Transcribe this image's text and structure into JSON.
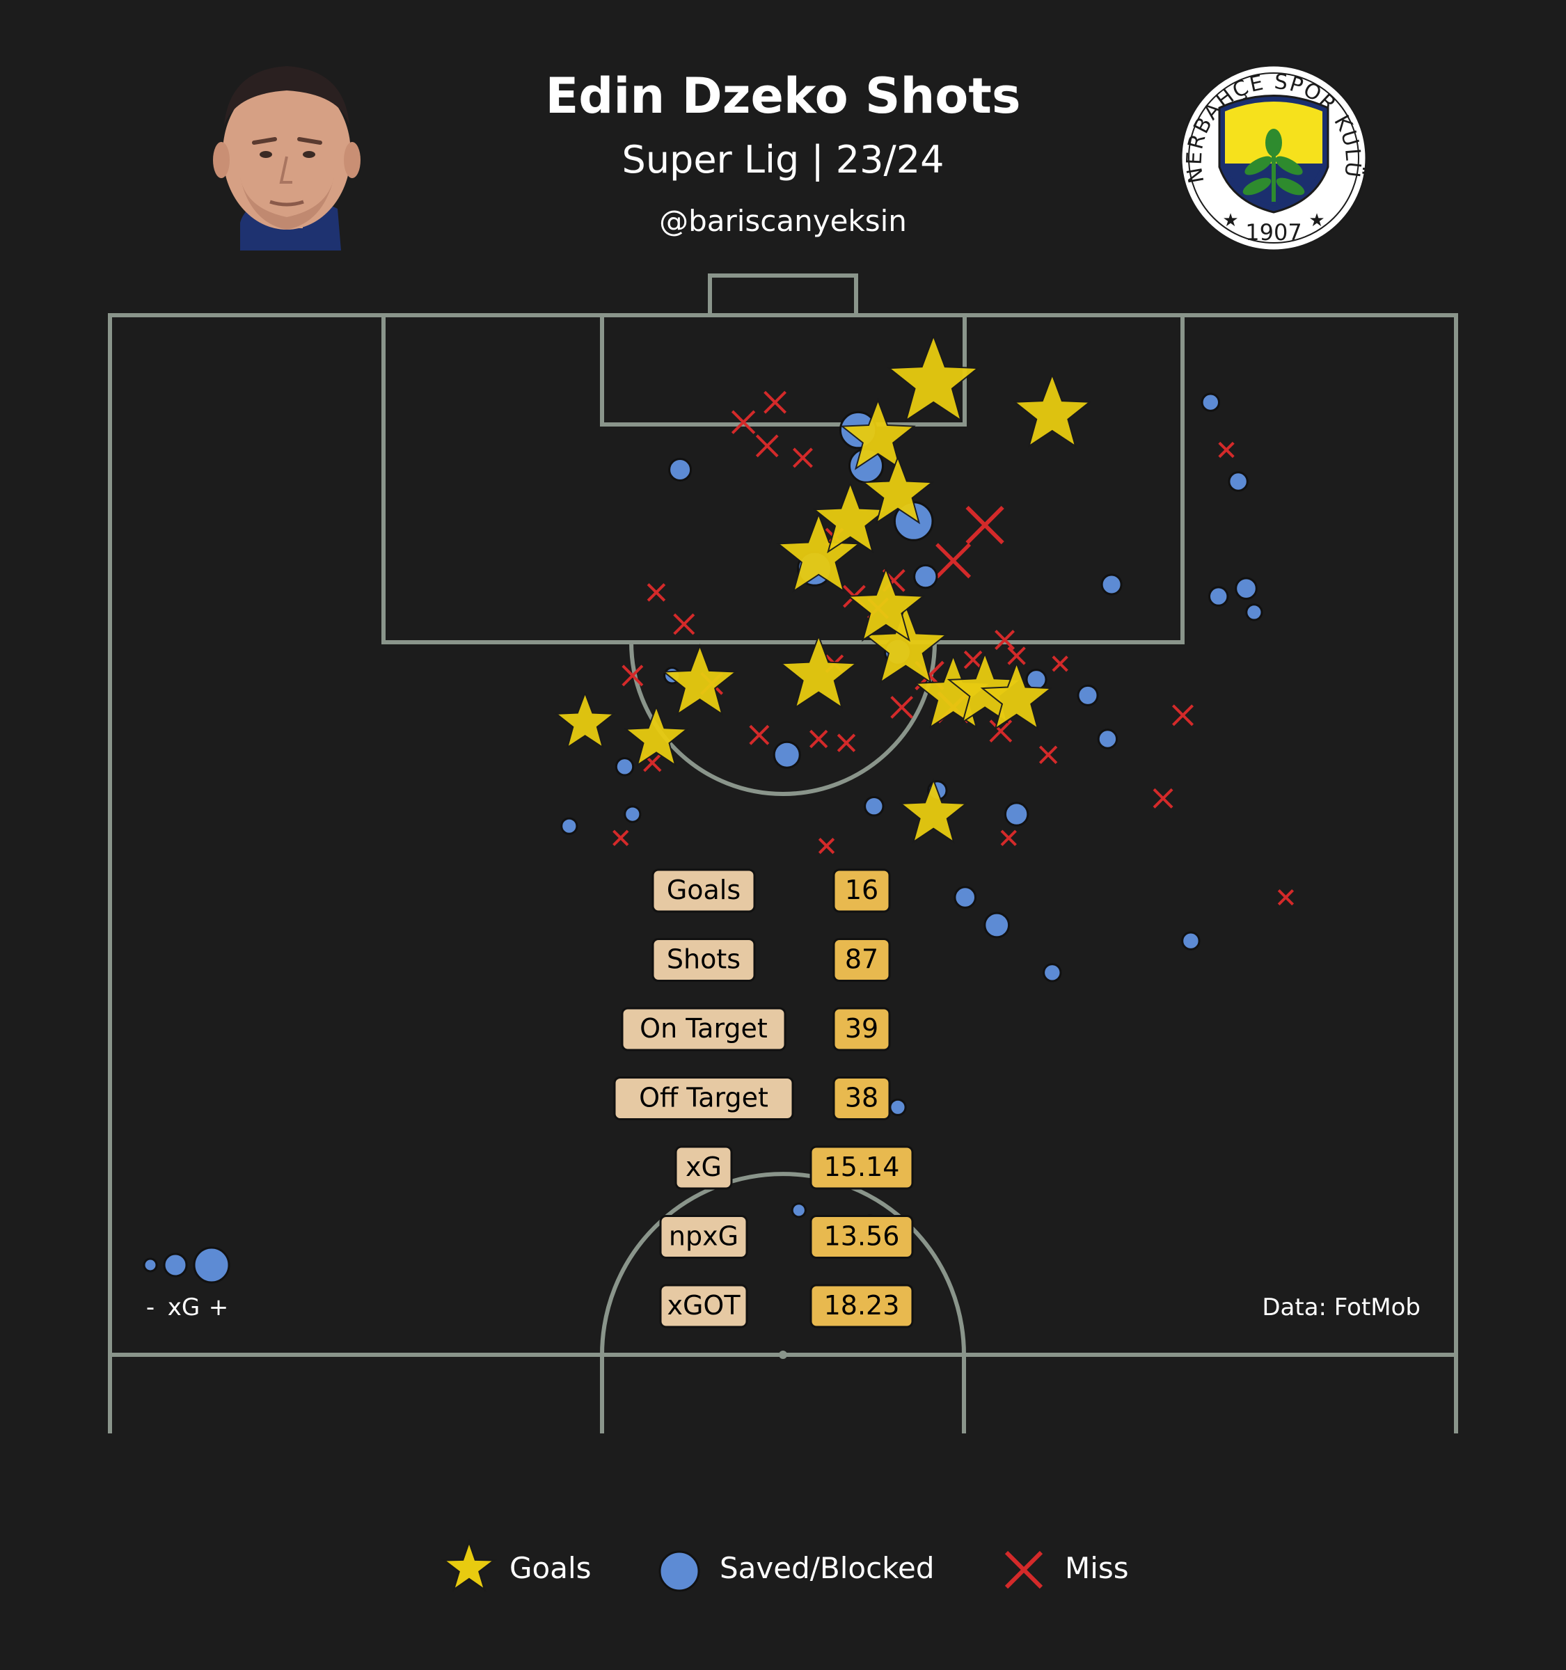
{
  "header": {
    "title": "Edin Dzeko Shots",
    "subtitle": "Super Lig | 23/24",
    "handle": "@bariscanyeksin",
    "source": "Data: FotMob"
  },
  "club_badge": {
    "text_top": "FENERBAHÇE SPOR KULÜBÜ",
    "year": "1907",
    "colors": {
      "navy": "#1b2f6e",
      "yellow": "#f6e11c",
      "leaf": "#2e8b2e",
      "red": "#c8102e"
    }
  },
  "colors": {
    "background": "#1c1c1c",
    "pitch_lines": "#8a958b",
    "goal": "#e8cb10",
    "saved": "#5d8bd4",
    "miss": "#d42a2a",
    "label_box": "#e6c9a3",
    "value_box": "#e8b94f"
  },
  "stats": [
    {
      "label": "Goals",
      "value": "16"
    },
    {
      "label": "Shots",
      "value": "87"
    },
    {
      "label": "On Target",
      "value": "39"
    },
    {
      "label": "Off Target",
      "value": "38"
    },
    {
      "label": "xG",
      "value": "15.14"
    },
    {
      "label": "npxG",
      "value": "13.56"
    },
    {
      "label": "xGOT",
      "value": "18.23"
    }
  ],
  "size_legend": {
    "minus": "-",
    "label": "xG",
    "plus": "+"
  },
  "legend": [
    {
      "key": "goal",
      "label": "Goals"
    },
    {
      "key": "saved",
      "label": "Saved/Blocked"
    },
    {
      "key": "miss",
      "label": "Miss"
    }
  ],
  "chart_data": {
    "type": "scatter",
    "title": "Edin Dzeko Shots",
    "description": "Shot map on half pitch; x = meters from left touchline, y = meters from goal line, xg = expected goals (marker size)",
    "shots": [
      {
        "x": 41.6,
        "y": 3.4,
        "xg": 0.75,
        "outcome": "goal"
      },
      {
        "x": 47.6,
        "y": 5.0,
        "xg": 0.5,
        "outcome": "goal"
      },
      {
        "x": 38.8,
        "y": 6.2,
        "xg": 0.45,
        "outcome": "goal"
      },
      {
        "x": 37.4,
        "y": 10.4,
        "xg": 0.45,
        "outcome": "goal"
      },
      {
        "x": 35.8,
        "y": 12.2,
        "xg": 0.6,
        "outcome": "goal"
      },
      {
        "x": 39.2,
        "y": 14.8,
        "xg": 0.5,
        "outcome": "goal"
      },
      {
        "x": 40.2,
        "y": 16.8,
        "xg": 0.6,
        "outcome": "goal"
      },
      {
        "x": 35.8,
        "y": 18.2,
        "xg": 0.5,
        "outcome": "goal"
      },
      {
        "x": 29.8,
        "y": 18.6,
        "xg": 0.45,
        "outcome": "goal"
      },
      {
        "x": 44.2,
        "y": 19.0,
        "xg": 0.45,
        "outcome": "goal"
      },
      {
        "x": 42.6,
        "y": 19.2,
        "xg": 0.5,
        "outcome": "goal"
      },
      {
        "x": 45.8,
        "y": 19.4,
        "xg": 0.4,
        "outcome": "goal"
      },
      {
        "x": 24.0,
        "y": 20.6,
        "xg": 0.25,
        "outcome": "goal"
      },
      {
        "x": 27.6,
        "y": 21.4,
        "xg": 0.3,
        "outcome": "goal"
      },
      {
        "x": 41.6,
        "y": 25.2,
        "xg": 0.35,
        "outcome": "goal"
      },
      {
        "x": 39.8,
        "y": 9.0,
        "xg": 0.4,
        "outcome": "goal"
      },
      {
        "x": 37.8,
        "y": 5.8,
        "xg": 0.3,
        "outcome": "saved"
      },
      {
        "x": 38.2,
        "y": 7.6,
        "xg": 0.25,
        "outcome": "saved"
      },
      {
        "x": 40.6,
        "y": 10.4,
        "xg": 0.35,
        "outcome": "saved"
      },
      {
        "x": 35.6,
        "y": 12.8,
        "xg": 0.25,
        "outcome": "saved"
      },
      {
        "x": 41.2,
        "y": 13.2,
        "xg": 0.08,
        "outcome": "saved"
      },
      {
        "x": 39.8,
        "y": 17.0,
        "xg": 0.12,
        "outcome": "saved"
      },
      {
        "x": 28.8,
        "y": 7.8,
        "xg": 0.07,
        "outcome": "saved"
      },
      {
        "x": 55.6,
        "y": 4.4,
        "xg": 0.03,
        "outcome": "saved"
      },
      {
        "x": 57.0,
        "y": 8.4,
        "xg": 0.04,
        "outcome": "saved"
      },
      {
        "x": 50.6,
        "y": 13.6,
        "xg": 0.05,
        "outcome": "saved"
      },
      {
        "x": 56.0,
        "y": 14.2,
        "xg": 0.04,
        "outcome": "saved"
      },
      {
        "x": 57.4,
        "y": 13.8,
        "xg": 0.06,
        "outcome": "saved"
      },
      {
        "x": 57.8,
        "y": 15.0,
        "xg": 0.02,
        "outcome": "saved"
      },
      {
        "x": 46.8,
        "y": 18.4,
        "xg": 0.05,
        "outcome": "saved"
      },
      {
        "x": 49.4,
        "y": 19.2,
        "xg": 0.05,
        "outcome": "saved"
      },
      {
        "x": 28.4,
        "y": 18.2,
        "xg": 0.02,
        "outcome": "saved"
      },
      {
        "x": 50.4,
        "y": 21.4,
        "xg": 0.04,
        "outcome": "saved"
      },
      {
        "x": 34.2,
        "y": 22.2,
        "xg": 0.12,
        "outcome": "saved"
      },
      {
        "x": 26.0,
        "y": 22.8,
        "xg": 0.03,
        "outcome": "saved"
      },
      {
        "x": 38.6,
        "y": 24.8,
        "xg": 0.04,
        "outcome": "saved"
      },
      {
        "x": 41.8,
        "y": 24.0,
        "xg": 0.04,
        "outcome": "saved"
      },
      {
        "x": 45.8,
        "y": 25.2,
        "xg": 0.08,
        "outcome": "saved"
      },
      {
        "x": 26.4,
        "y": 25.2,
        "xg": 0.02,
        "outcome": "saved"
      },
      {
        "x": 23.2,
        "y": 25.8,
        "xg": 0.02,
        "outcome": "saved"
      },
      {
        "x": 43.2,
        "y": 29.4,
        "xg": 0.06,
        "outcome": "saved"
      },
      {
        "x": 44.8,
        "y": 30.8,
        "xg": 0.1,
        "outcome": "saved"
      },
      {
        "x": 30.8,
        "y": 32.6,
        "xg": 0.04,
        "outcome": "saved"
      },
      {
        "x": 54.6,
        "y": 31.6,
        "xg": 0.03,
        "outcome": "saved"
      },
      {
        "x": 47.6,
        "y": 33.2,
        "xg": 0.03,
        "outcome": "saved"
      },
      {
        "x": 38.4,
        "y": 39.4,
        "xg": 0.02,
        "outcome": "saved"
      },
      {
        "x": 39.8,
        "y": 40.0,
        "xg": 0.02,
        "outcome": "saved"
      },
      {
        "x": 34.8,
        "y": 45.2,
        "xg": 0.01,
        "outcome": "saved"
      },
      {
        "x": 38.4,
        "y": 45.8,
        "xg": 0.01,
        "outcome": "saved"
      },
      {
        "x": 32.0,
        "y": 5.4,
        "xg": 0.06,
        "outcome": "miss"
      },
      {
        "x": 33.6,
        "y": 4.4,
        "xg": 0.05,
        "outcome": "miss"
      },
      {
        "x": 33.2,
        "y": 6.6,
        "xg": 0.05,
        "outcome": "miss"
      },
      {
        "x": 35.0,
        "y": 7.2,
        "xg": 0.03,
        "outcome": "miss"
      },
      {
        "x": 56.4,
        "y": 6.8,
        "xg": 0.01,
        "outcome": "miss"
      },
      {
        "x": 44.2,
        "y": 10.6,
        "xg": 0.25,
        "outcome": "miss"
      },
      {
        "x": 42.6,
        "y": 12.4,
        "xg": 0.2,
        "outcome": "miss"
      },
      {
        "x": 27.6,
        "y": 14.0,
        "xg": 0.02,
        "outcome": "miss"
      },
      {
        "x": 29.0,
        "y": 15.6,
        "xg": 0.04,
        "outcome": "miss"
      },
      {
        "x": 37.6,
        "y": 14.2,
        "xg": 0.05,
        "outcome": "miss"
      },
      {
        "x": 38.8,
        "y": 14.8,
        "xg": 0.04,
        "outcome": "miss"
      },
      {
        "x": 39.6,
        "y": 13.4,
        "xg": 0.05,
        "outcome": "miss"
      },
      {
        "x": 45.2,
        "y": 16.4,
        "xg": 0.03,
        "outcome": "miss"
      },
      {
        "x": 45.8,
        "y": 17.2,
        "xg": 0.02,
        "outcome": "miss"
      },
      {
        "x": 48.0,
        "y": 17.6,
        "xg": 0.01,
        "outcome": "miss"
      },
      {
        "x": 43.6,
        "y": 17.4,
        "xg": 0.02,
        "outcome": "miss"
      },
      {
        "x": 42.6,
        "y": 19.8,
        "xg": 0.15,
        "outcome": "miss"
      },
      {
        "x": 41.4,
        "y": 18.2,
        "xg": 0.12,
        "outcome": "miss"
      },
      {
        "x": 40.0,
        "y": 19.8,
        "xg": 0.05,
        "outcome": "miss"
      },
      {
        "x": 45.0,
        "y": 21.0,
        "xg": 0.05,
        "outcome": "miss"
      },
      {
        "x": 30.4,
        "y": 18.6,
        "xg": 0.05,
        "outcome": "miss"
      },
      {
        "x": 32.8,
        "y": 21.2,
        "xg": 0.03,
        "outcome": "miss"
      },
      {
        "x": 35.8,
        "y": 21.4,
        "xg": 0.02,
        "outcome": "miss"
      },
      {
        "x": 37.2,
        "y": 21.6,
        "xg": 0.02,
        "outcome": "miss"
      },
      {
        "x": 26.4,
        "y": 18.2,
        "xg": 0.04,
        "outcome": "miss"
      },
      {
        "x": 27.4,
        "y": 22.6,
        "xg": 0.02,
        "outcome": "miss"
      },
      {
        "x": 36.2,
        "y": 26.8,
        "xg": 0.01,
        "outcome": "miss"
      },
      {
        "x": 47.4,
        "y": 22.2,
        "xg": 0.02,
        "outcome": "miss"
      },
      {
        "x": 45.4,
        "y": 26.4,
        "xg": 0.01,
        "outcome": "miss"
      },
      {
        "x": 54.2,
        "y": 20.2,
        "xg": 0.04,
        "outcome": "miss"
      },
      {
        "x": 53.2,
        "y": 24.4,
        "xg": 0.03,
        "outcome": "miss"
      },
      {
        "x": 25.8,
        "y": 26.4,
        "xg": 0.01,
        "outcome": "miss"
      },
      {
        "x": 31.4,
        "y": 29.2,
        "xg": 0.01,
        "outcome": "miss"
      },
      {
        "x": 59.4,
        "y": 29.4,
        "xg": 0.01,
        "outcome": "miss"
      },
      {
        "x": 28.4,
        "y": 36.4,
        "xg": 0.01,
        "outcome": "miss"
      },
      {
        "x": 36.6,
        "y": 11.2,
        "xg": 0.02,
        "outcome": "miss"
      },
      {
        "x": 36.6,
        "y": 17.6,
        "xg": 0.02,
        "outcome": "miss"
      }
    ]
  }
}
